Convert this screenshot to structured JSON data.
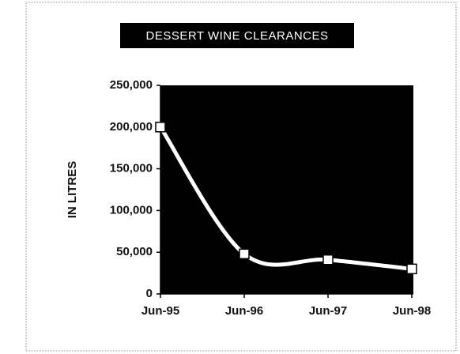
{
  "chart_data": {
    "type": "line",
    "title": "DESSERT WINE CLEARANCES",
    "ylabel": "IN LITRES",
    "categories": [
      "Jun-95",
      "Jun-96",
      "Jun-97",
      "Jun-98"
    ],
    "values": [
      200000,
      48000,
      41000,
      30000
    ],
    "color": "#ffffff",
    "background": "#000000",
    "ylim": [
      0,
      250000
    ],
    "yticks": [
      0,
      {
        "value": 50000,
        "label": "50,000"
      },
      {
        "value": 100000,
        "label": "100,000"
      },
      {
        "value": 150000,
        "label": "150,000"
      },
      {
        "value": 200000,
        "label": "200,000"
      },
      {
        "value": 250000,
        "label": "250,000"
      }
    ]
  }
}
